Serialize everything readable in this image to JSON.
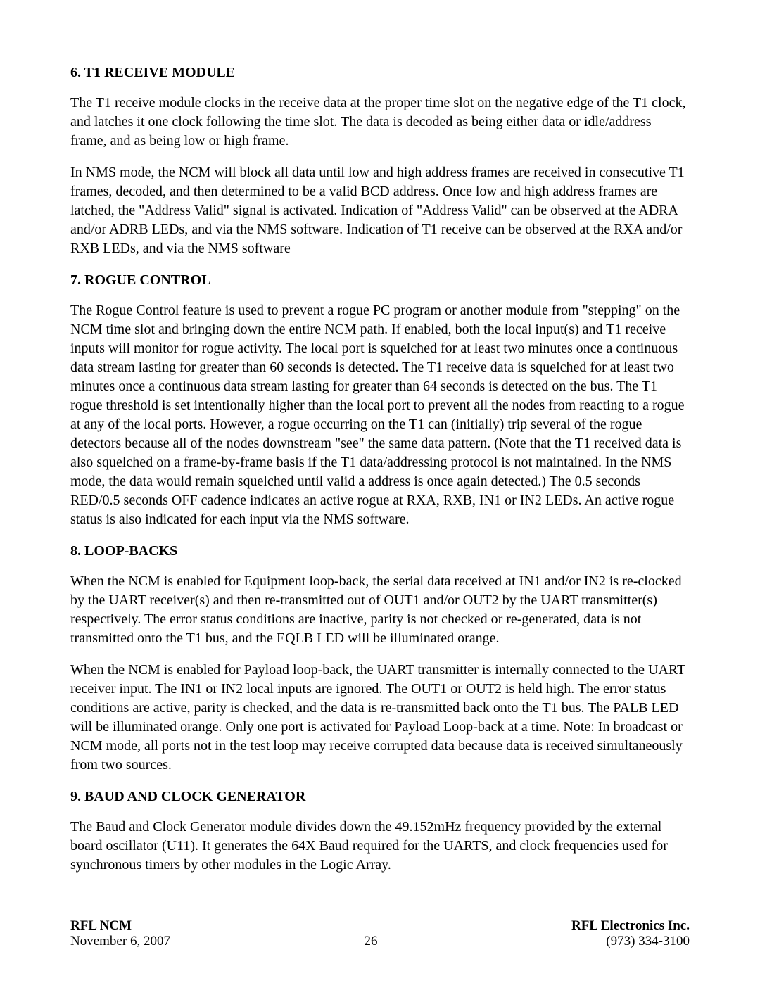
{
  "sections": {
    "s6": {
      "heading": "6.  T1 RECEIVE MODULE",
      "p1": "The T1 receive module clocks in the receive data at the proper time slot on the negative edge of the T1 clock, and latches it one clock following the time slot. The data is decoded as being either data or idle/address frame, and as being low or high frame.",
      "p2": "In NMS mode, the NCM will block all data until low and high address frames are received in consecutive T1 frames, decoded, and then determined to be a valid BCD address. Once low and high address frames are latched, the \"Address Valid\" signal is activated. Indication of \"Address Valid\" can be observed at the ADRA and/or ADRB LEDs, and via the NMS software. Indication of T1 receive can be observed at the RXA and/or RXB LEDs, and via the NMS software"
    },
    "s7": {
      "heading": "7.  ROGUE CONTROL",
      "p1": "The Rogue Control feature is used to prevent a rogue PC program or another module from \"stepping\" on the NCM time slot and bringing down the entire NCM path. If enabled, both the local input(s) and T1 receive inputs will monitor for rogue activity. The local port is squelched for at least two minutes once a continuous data stream lasting for greater than 60 seconds is detected. The T1 receive data is squelched for at least two minutes once a continuous data stream lasting for greater than 64 seconds is detected on the bus. The T1 rogue threshold is set intentionally higher than the local port to prevent all the nodes from reacting to a rogue at any of the local ports. However, a rogue occurring on the T1 can (initially) trip several of the rogue detectors because all of the nodes downstream \"see\" the same data pattern. (Note that the T1 received data is also squelched on a frame-by-frame basis if the T1 data/addressing protocol is not maintained. In the NMS mode, the data would remain squelched until valid a address is once again detected.) The 0.5 seconds RED/0.5 seconds OFF cadence indicates an active rogue at RXA, RXB, IN1 or IN2 LEDs. An active rogue status is also indicated for each input via the NMS software."
    },
    "s8": {
      "heading": "8.  LOOP-BACKS",
      "p1": "When the NCM is enabled for Equipment loop-back, the serial data received at IN1 and/or IN2 is re-clocked by the UART receiver(s) and then re-transmitted out of OUT1 and/or OUT2 by the UART transmitter(s) respectively. The error status conditions are inactive, parity is not checked or re-generated, data is not transmitted onto the T1 bus, and the EQLB LED will be illuminated orange.",
      "p2": "When the NCM is enabled for Payload loop-back, the UART transmitter is internally connected to the UART receiver input. The IN1 or IN2 local inputs are ignored. The OUT1 or OUT2 is held high. The error status conditions are active, parity is checked, and the data is re-transmitted back onto the T1 bus. The PALB LED will be illuminated orange. Only one port is activated for Payload Loop-back at a time. Note: In broadcast or NCM mode, all ports not in the test loop may receive corrupted data because data is received simultaneously from two sources."
    },
    "s9": {
      "heading": "9.  BAUD AND CLOCK GENERATOR",
      "p1": "The Baud and Clock Generator module divides down the 49.152mHz frequency provided by the external board oscillator (U11). It generates the 64X Baud required for the UARTS, and clock frequencies used for synchronous timers by other modules in the Logic Array."
    }
  },
  "footer": {
    "left_bold": "RFL NCM",
    "left_date": "November 6, 2007",
    "center_page": "26",
    "right_bold": "RFL Electronics Inc.",
    "right_phone": "(973) 334-3100"
  }
}
